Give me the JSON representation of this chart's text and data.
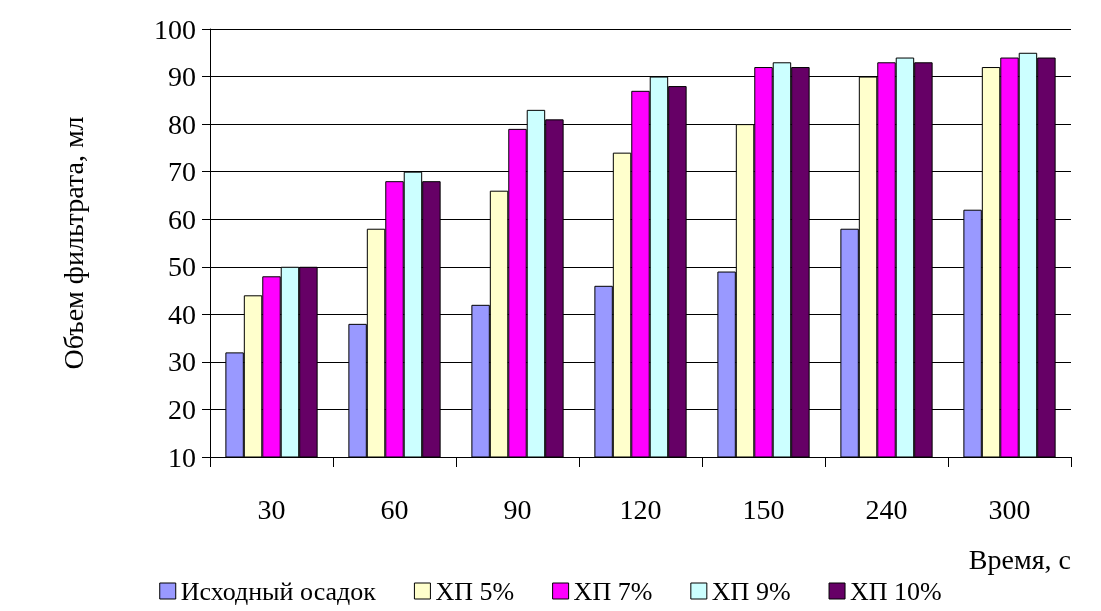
{
  "chart_data": {
    "type": "bar",
    "xlabel": "Время, с",
    "ylabel": "Объем фильтрата, мл",
    "categories": [
      "30",
      "60",
      "90",
      "120",
      "150",
      "240",
      "300"
    ],
    "series": [
      {
        "name": "Исходный осадок",
        "color": "#9999ff",
        "values": [
          32,
          38,
          42,
          46,
          49,
          58,
          62
        ]
      },
      {
        "name": "ХП 5%",
        "color": "#ffffcc",
        "values": [
          44,
          58,
          66,
          74,
          80,
          90,
          92
        ]
      },
      {
        "name": "ХП 7%",
        "color": "#ff00ff",
        "values": [
          48,
          68,
          79,
          87,
          92,
          93,
          94
        ]
      },
      {
        "name": "ХП 9%",
        "color": "#ccffff",
        "values": [
          50,
          70,
          83,
          90,
          93,
          94,
          95
        ]
      },
      {
        "name": "ХП 10%",
        "color": "#660066",
        "values": [
          50,
          68,
          81,
          88,
          92,
          93,
          94
        ]
      }
    ],
    "ylim": [
      10,
      100
    ],
    "yticks": [
      10,
      20,
      30,
      40,
      50,
      60,
      70,
      80,
      90,
      100
    ],
    "grid": "y",
    "legend": "bottom"
  }
}
